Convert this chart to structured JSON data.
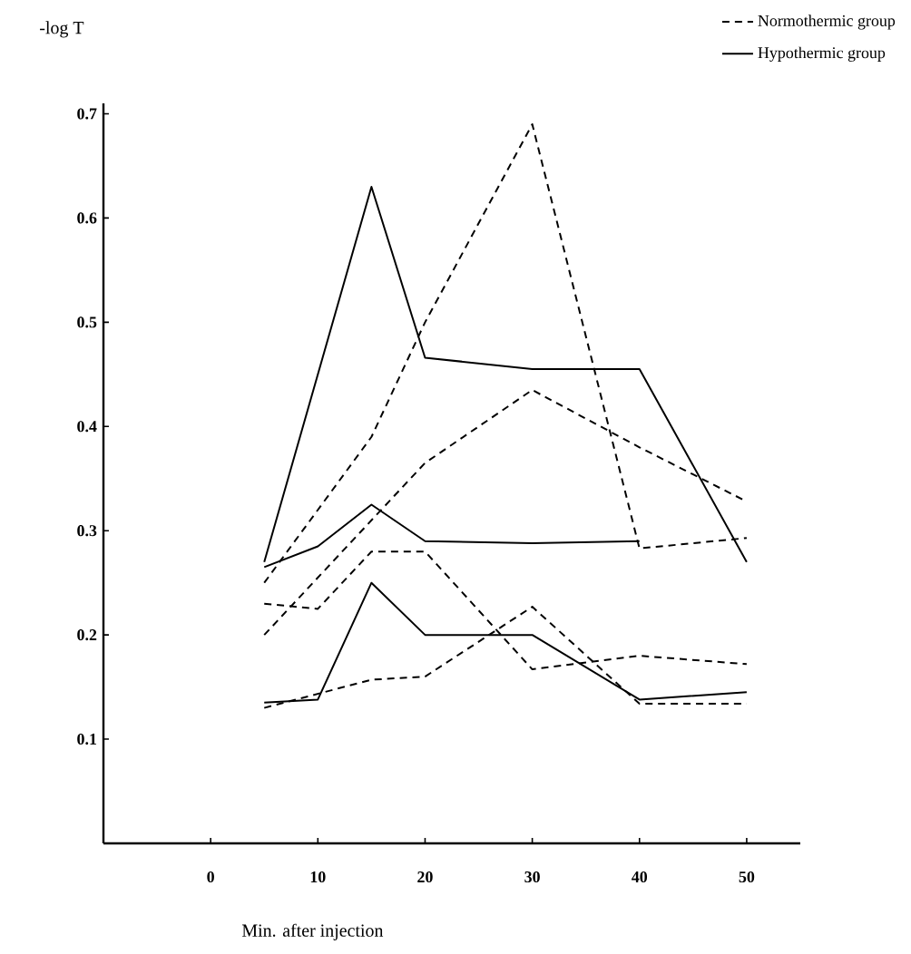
{
  "chart_data": {
    "type": "line",
    "xlabel": "Min.        after        injection",
    "ylabel": "-log  T",
    "xlim": [
      -10,
      55
    ],
    "ylim": [
      0,
      0.71
    ],
    "xticks": [
      0,
      10,
      20,
      30,
      40,
      50
    ],
    "yticks": [
      0.1,
      0.2,
      0.3,
      0.4,
      0.5,
      0.6,
      0.7
    ],
    "grid": false,
    "legend": "top right",
    "marker": "none",
    "series": [
      {
        "name": "Normothermic group",
        "color": "#000000",
        "line_style": "dashed",
        "x": [
          5,
          10,
          15,
          20,
          30,
          40,
          50
        ],
        "values": [
          0.25,
          0.32,
          0.39,
          0.5,
          0.69,
          0.283,
          0.293
        ]
      },
      {
        "name": "Hypothermic group",
        "color": "#000000",
        "line_style": "solid",
        "x": [
          5,
          15,
          20,
          30,
          40,
          50
        ],
        "values": [
          0.27,
          0.63,
          0.466,
          0.455,
          0.455,
          0.27
        ]
      },
      {
        "color": "#000000",
        "line_style": "dashed",
        "x": [
          5,
          20,
          30,
          40,
          50
        ],
        "values": [
          0.2,
          0.365,
          0.435,
          0.38,
          0.328
        ]
      },
      {
        "color": "#000000",
        "line_style": "dashed",
        "x": [
          5,
          10,
          15,
          20,
          30,
          40,
          50
        ],
        "values": [
          0.23,
          0.225,
          0.28,
          0.28,
          0.167,
          0.18,
          0.172
        ]
      },
      {
        "color": "#000000",
        "line_style": "dashed",
        "x": [
          5,
          15,
          20,
          30,
          40,
          50
        ],
        "values": [
          0.13,
          0.157,
          0.16,
          0.227,
          0.134,
          0.134
        ]
      },
      {
        "color": "#000000",
        "line_style": "solid",
        "x": [
          5,
          10,
          15,
          20,
          30,
          40
        ],
        "values": [
          0.265,
          0.285,
          0.325,
          0.29,
          0.288,
          0.29
        ]
      },
      {
        "color": "#000000",
        "line_style": "solid",
        "x": [
          5,
          10,
          15,
          20,
          30,
          40,
          50
        ],
        "values": [
          0.135,
          0.138,
          0.25,
          0.2,
          0.2,
          0.138,
          0.145
        ]
      }
    ]
  }
}
